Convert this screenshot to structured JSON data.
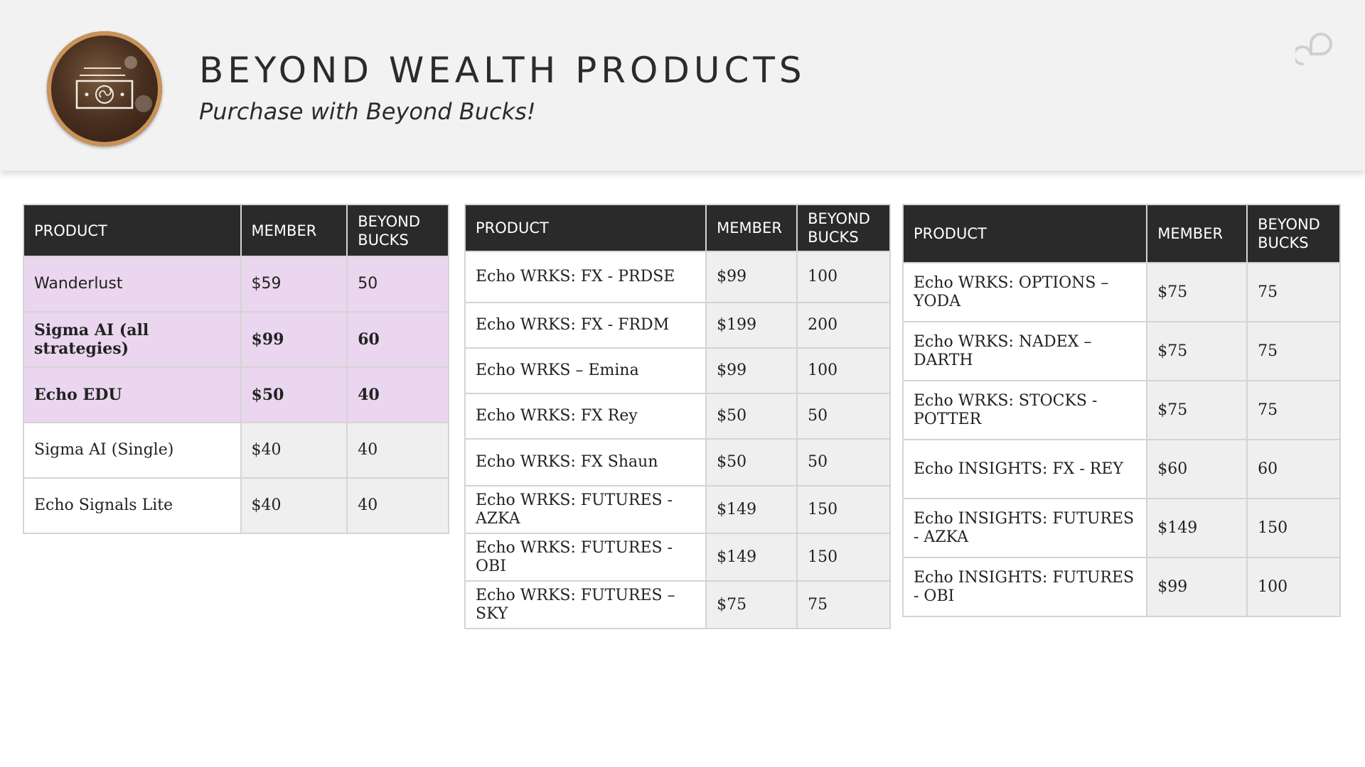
{
  "header": {
    "title": "BEYOND WEALTH PRODUCTS",
    "subtitle": "Purchase with Beyond Bucks!",
    "logo_icon": "money-bill-icon",
    "corner_icon": "beyond-logo-icon"
  },
  "tables": [
    {
      "headers": [
        "PRODUCT",
        "MEMBER",
        "BEYOND BUCKS"
      ],
      "rows": [
        {
          "product": "Wanderlust",
          "member": "$59",
          "bucks": "50"
        },
        {
          "product": "Sigma AI (all strategies)",
          "member": "$99",
          "bucks": "60"
        },
        {
          "product": "Echo EDU",
          "member": "$50",
          "bucks": "40"
        },
        {
          "product": "Sigma AI (Single)",
          "member": "$40",
          "bucks": "40"
        },
        {
          "product": "Echo Signals Lite",
          "member": "$40",
          "bucks": "40"
        }
      ]
    },
    {
      "headers": [
        "PRODUCT",
        "MEMBER",
        "BEYOND BUCKS"
      ],
      "rows": [
        {
          "product": "Echo WRKS: FX - PRDSE",
          "member": "$99",
          "bucks": "100"
        },
        {
          "product": "Echo WRKS: FX - FRDM",
          "member": "$199",
          "bucks": "200"
        },
        {
          "product": "Echo WRKS – Emina",
          "member": "$99",
          "bucks": "100"
        },
        {
          "product": "Echo WRKS: FX Rey",
          "member": "$50",
          "bucks": "50"
        },
        {
          "product": "Echo WRKS: FX Shaun",
          "member": "$50",
          "bucks": "50"
        },
        {
          "product": "Echo WRKS: FUTURES - AZKA",
          "member": "$149",
          "bucks": "150"
        },
        {
          "product": "Echo WRKS: FUTURES - OBI",
          "member": "$149",
          "bucks": "150"
        },
        {
          "product": "Echo WRKS: FUTURES – SKY",
          "member": "$75",
          "bucks": "75"
        }
      ]
    },
    {
      "headers": [
        "PRODUCT",
        "MEMBER",
        "BEYOND BUCKS"
      ],
      "rows": [
        {
          "product": "Echo WRKS: OPTIONS – YODA",
          "member": "$75",
          "bucks": "75"
        },
        {
          "product": "Echo WRKS: NADEX – DARTH",
          "member": "$75",
          "bucks": "75"
        },
        {
          "product": "Echo WRKS: STOCKS - POTTER",
          "member": "$75",
          "bucks": "75"
        },
        {
          "product": "Echo INSIGHTS: FX - REY",
          "member": "$60",
          "bucks": "60"
        },
        {
          "product": "Echo INSIGHTS: FUTURES - AZKA",
          "member": "$149",
          "bucks": "150"
        },
        {
          "product": "Echo INSIGHTS: FUTURES - OBI",
          "member": "$99",
          "bucks": "100"
        }
      ]
    }
  ]
}
